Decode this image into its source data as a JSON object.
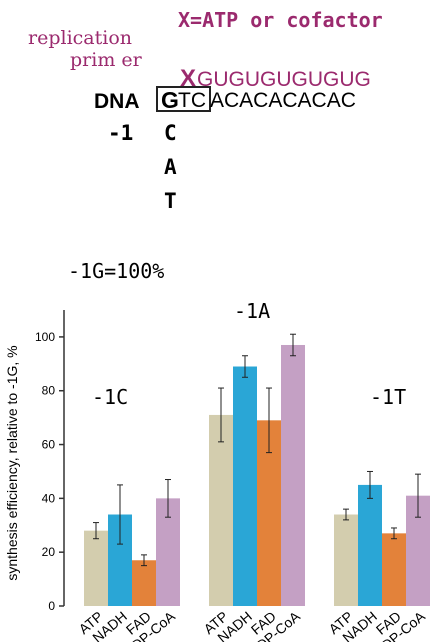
{
  "header": {
    "replication_label_line1": "replication",
    "replication_label_line2": "prim er",
    "x_definition": "X=ATP or cofactor",
    "primer_x": "X",
    "primer_seq": "GUGUGUGUGUG",
    "dna_label": "DNA",
    "dna_boxed_g": "G",
    "dna_boxed_tc": "TC",
    "dna_rest": "ACACACACAC",
    "minus1_label": "-1",
    "variant_bases": [
      "C",
      "A",
      "T"
    ]
  },
  "annotations": {
    "reference": "-1G=100%"
  },
  "colors": {
    "purple_text": "#9b2a6e",
    "ATP": "#d3cdae",
    "NADH": "#2aa6d6",
    "FAD": "#e3823a",
    "DP-CoA": "#c4a0c4",
    "axis": "#333333"
  },
  "chart_data": {
    "type": "bar",
    "ylabel": "synthesis  efficiency, relative to -1G, %",
    "ylim": [
      0,
      110
    ],
    "yticks": [
      0,
      20,
      40,
      60,
      80,
      100
    ],
    "series_names": [
      "ATP",
      "NADH",
      "FAD",
      "DP-CoA"
    ],
    "groups": [
      {
        "label": "-1C",
        "values": [
          28,
          34,
          17,
          40
        ],
        "errors": [
          3,
          11,
          2,
          7
        ],
        "tick_labels": [
          "ATP",
          "NADH",
          "FAD",
          "DP-CoA"
        ]
      },
      {
        "label": "-1A",
        "values": [
          71,
          89,
          69,
          97
        ],
        "errors": [
          10,
          4,
          12,
          4
        ],
        "tick_labels": [
          "ATP",
          "NADH",
          "FAD",
          "DP-CoA"
        ]
      },
      {
        "label": "-1T",
        "values": [
          34,
          45,
          27,
          41
        ],
        "errors": [
          2,
          5,
          2,
          8
        ],
        "tick_labels": [
          "ATP",
          "NADH",
          "FAD",
          "DP-CoA"
        ]
      }
    ]
  }
}
